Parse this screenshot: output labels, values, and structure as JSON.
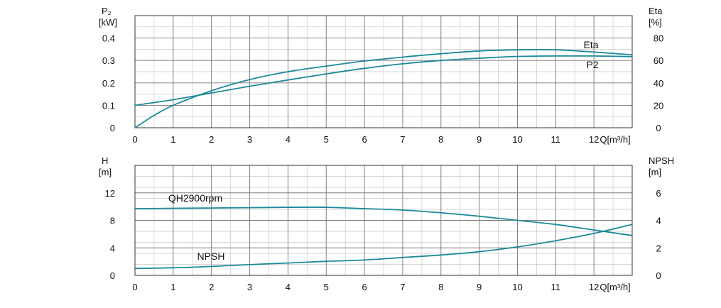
{
  "chart_data": [
    {
      "type": "line",
      "x_axis": {
        "label": "Q[m³/h]",
        "min": 0,
        "max": 13,
        "ticks": [
          "0",
          "1",
          "2",
          "3",
          "4",
          "5",
          "6",
          "7",
          "8",
          "9",
          "10",
          "11",
          "12"
        ]
      },
      "y_axis_left": {
        "label_line1": "P₂",
        "label_line2": "[kW]",
        "min": 0,
        "max": 0.5,
        "ticks": [
          "0",
          "0.1",
          "0.2",
          "0.3",
          "0.4"
        ]
      },
      "y_axis_right": {
        "label_line1": "Eta",
        "label_line2": "[%]",
        "min": 0,
        "max": 100,
        "ticks": [
          "0",
          "20",
          "40",
          "60",
          "80"
        ]
      },
      "grid": true,
      "series": [
        {
          "name": "Eta",
          "axis": "right",
          "color": "#1a8a9a",
          "points": [
            [
              0,
              0
            ],
            [
              0.5,
              11
            ],
            [
              1,
              20
            ],
            [
              2,
              33
            ],
            [
              3,
              43
            ],
            [
              4,
              50
            ],
            [
              5,
              55
            ],
            [
              6,
              59.5
            ],
            [
              7,
              63
            ],
            [
              8,
              66
            ],
            [
              9,
              68.5
            ],
            [
              10,
              69.5
            ],
            [
              11,
              69.5
            ],
            [
              12,
              67.5
            ],
            [
              13,
              65
            ]
          ]
        },
        {
          "name": "P2",
          "axis": "left",
          "color": "#1a8a9a",
          "points": [
            [
              0,
              0.1
            ],
            [
              1,
              0.125
            ],
            [
              2,
              0.155
            ],
            [
              3,
              0.185
            ],
            [
              4,
              0.213
            ],
            [
              5,
              0.24
            ],
            [
              6,
              0.265
            ],
            [
              7,
              0.285
            ],
            [
              8,
              0.3
            ],
            [
              9,
              0.31
            ],
            [
              10,
              0.318
            ],
            [
              11,
              0.32
            ],
            [
              12,
              0.32
            ],
            [
              13,
              0.317
            ]
          ]
        }
      ]
    },
    {
      "type": "line",
      "x_axis": {
        "label": "Q[m³/h]",
        "min": 0,
        "max": 13,
        "ticks": [
          "0",
          "1",
          "2",
          "3",
          "4",
          "5",
          "6",
          "7",
          "8",
          "9",
          "10",
          "11",
          "12"
        ]
      },
      "y_axis_left": {
        "label_line1": "H",
        "label_line2": "[m]",
        "min": 0,
        "max": 16,
        "ticks": [
          "0",
          "4",
          "8",
          "12"
        ]
      },
      "y_axis_right": {
        "label_line1": "NPSH",
        "label_line2": "[m]",
        "min": 0,
        "max": 8,
        "ticks": [
          "0",
          "2",
          "4",
          "6"
        ]
      },
      "grid": true,
      "series": [
        {
          "name": "QH2900rpm",
          "axis": "left",
          "color": "#1a8a9a",
          "points": [
            [
              0,
              9.7
            ],
            [
              1,
              9.75
            ],
            [
              2,
              9.8
            ],
            [
              3,
              9.85
            ],
            [
              4,
              9.9
            ],
            [
              5,
              9.9
            ],
            [
              6,
              9.7
            ],
            [
              7,
              9.5
            ],
            [
              8,
              9.1
            ],
            [
              9,
              8.6
            ],
            [
              10,
              8.0
            ],
            [
              11,
              7.4
            ],
            [
              12,
              6.6
            ],
            [
              13,
              5.8
            ]
          ]
        },
        {
          "name": "NPSH",
          "axis": "right",
          "color": "#1a8a9a",
          "points": [
            [
              0,
              0.5
            ],
            [
              1,
              0.55
            ],
            [
              2,
              0.65
            ],
            [
              3,
              0.78
            ],
            [
              4,
              0.9
            ],
            [
              5,
              1.02
            ],
            [
              6,
              1.12
            ],
            [
              7,
              1.3
            ],
            [
              8,
              1.48
            ],
            [
              9,
              1.72
            ],
            [
              10,
              2.07
            ],
            [
              11,
              2.52
            ],
            [
              12,
              3.05
            ],
            [
              13,
              3.7
            ]
          ]
        }
      ]
    }
  ]
}
